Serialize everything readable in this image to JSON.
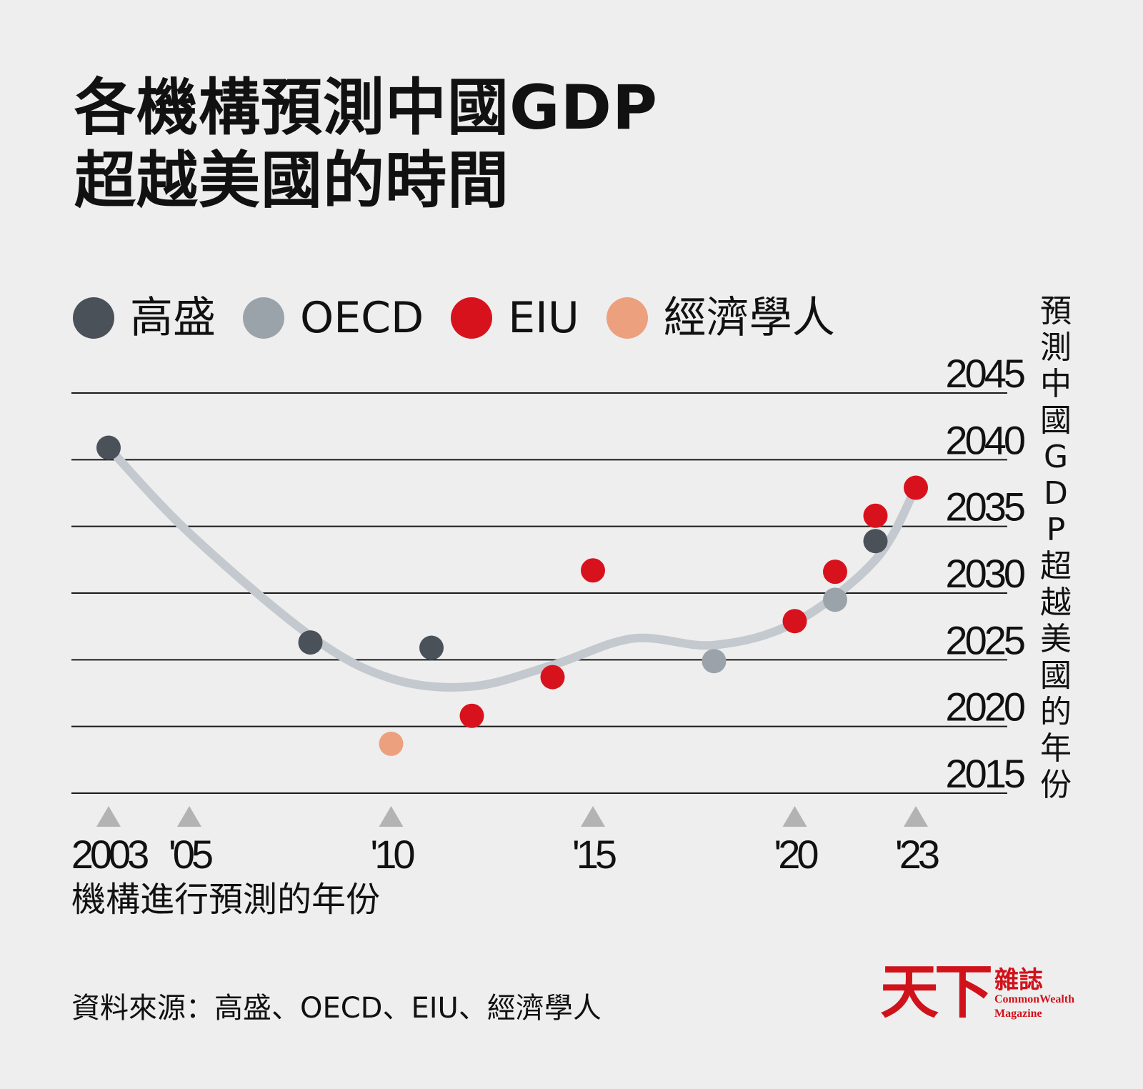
{
  "title": {
    "line1": "各機構預測中國GDP",
    "line2": "超越美國的時間"
  },
  "legend": [
    {
      "name": "高盛",
      "color": "#4a5159"
    },
    {
      "name": "OECD",
      "color": "#9ba3aa"
    },
    {
      "name": "EIU",
      "color": "#d8121c"
    },
    {
      "name": "經濟學人",
      "color": "#eca07e"
    }
  ],
  "source": "資料來源：高盛、OECD、EIU、經濟學人",
  "logo": {
    "text": "天下",
    "sub": "雜誌",
    "en_line1": "CommonWealth",
    "en_line2": "Magazine"
  },
  "chart_data": {
    "type": "scatter",
    "title": "各機構預測中國GDP超越美國的時間",
    "xlabel": "機構進行預測的年份",
    "ylabel": "預測中國GDP超越美國的年份",
    "xlim": [
      2003,
      2023
    ],
    "ylim": [
      2015,
      2045
    ],
    "x_ticks": [
      {
        "value": 2003,
        "label": "2003"
      },
      {
        "value": 2005,
        "label": "'05"
      },
      {
        "value": 2010,
        "label": "'10"
      },
      {
        "value": 2015,
        "label": "'15"
      },
      {
        "value": 2020,
        "label": "'20"
      },
      {
        "value": 2023,
        "label": "'23"
      }
    ],
    "y_ticks": [
      {
        "value": 2045,
        "label": "2045"
      },
      {
        "value": 2040,
        "label": "2040"
      },
      {
        "value": 2035,
        "label": "2035"
      },
      {
        "value": 2030,
        "label": "2030"
      },
      {
        "value": 2025,
        "label": "2025"
      },
      {
        "value": 2020,
        "label": "2020"
      },
      {
        "value": 2015,
        "label": "2015"
      }
    ],
    "grid": true,
    "legend_position": "top",
    "series": [
      {
        "name": "高盛",
        "color": "#4a5159",
        "points": [
          [
            2003,
            2040.9
          ],
          [
            2008,
            2026.3
          ],
          [
            2011,
            2025.9
          ],
          [
            2022,
            2033.9
          ]
        ]
      },
      {
        "name": "OECD",
        "color": "#9ba3aa",
        "points": [
          [
            2018,
            2024.9
          ],
          [
            2021,
            2029.5
          ]
        ]
      },
      {
        "name": "EIU",
        "color": "#d8121c",
        "points": [
          [
            2012,
            2020.8
          ],
          [
            2014,
            2023.7
          ],
          [
            2015,
            2031.7
          ],
          [
            2020,
            2027.9
          ],
          [
            2021,
            2031.6
          ],
          [
            2022,
            2035.8
          ],
          [
            2023,
            2037.9
          ]
        ]
      },
      {
        "name": "經濟學人",
        "color": "#eca07e",
        "points": [
          [
            2010,
            2018.7
          ]
        ]
      }
    ],
    "trend": {
      "color": "#c3c9ce",
      "points": [
        [
          2003,
          2040.9
        ],
        [
          2005,
          2034.5
        ],
        [
          2008,
          2026.8
        ],
        [
          2010,
          2023.6
        ],
        [
          2012,
          2023.0
        ],
        [
          2014,
          2024.6
        ],
        [
          2016,
          2026.6
        ],
        [
          2018,
          2026.1
        ],
        [
          2020,
          2027.8
        ],
        [
          2022,
          2032.5
        ],
        [
          2023,
          2037.9
        ]
      ]
    }
  }
}
